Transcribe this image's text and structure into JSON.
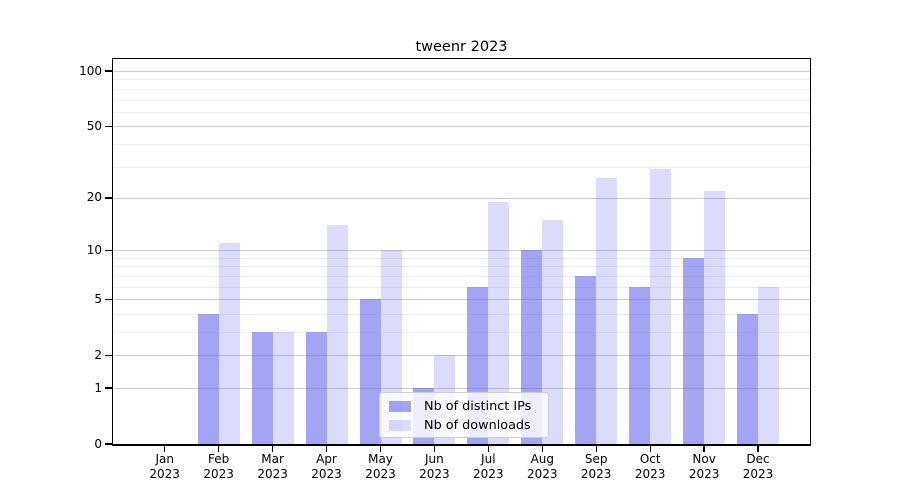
{
  "chart_data": {
    "type": "bar",
    "title": "tweenr 2023",
    "xlabel": "",
    "ylabel": "",
    "scale": "log1p",
    "grid": "on",
    "legend_position": "bottom-center-inside",
    "year": "2023",
    "categories": [
      "Jan",
      "Feb",
      "Mar",
      "Apr",
      "May",
      "Jun",
      "Jul",
      "Aug",
      "Sep",
      "Oct",
      "Nov",
      "Dec"
    ],
    "x_tick_labels": [
      "Jan 2023",
      "Feb 2023",
      "Mar 2023",
      "Apr 2023",
      "May 2023",
      "Jun 2023",
      "Jul 2023",
      "Aug 2023",
      "Sep 2023",
      "Oct 2023",
      "Nov 2023",
      "Dec 2023"
    ],
    "series": [
      {
        "name": "Nb of distinct IPs",
        "color": "rgba(90,90,235,0.55)",
        "values": [
          0,
          4,
          3,
          3,
          5,
          1,
          6,
          10,
          7,
          6,
          9,
          4
        ]
      },
      {
        "name": "Nb of downloads",
        "color": "rgba(90,90,235,0.22)",
        "values": [
          0,
          11,
          3,
          14,
          10,
          2,
          19,
          15,
          26,
          29,
          22,
          6
        ]
      }
    ],
    "y_axis": {
      "ticks": [
        0,
        1,
        2,
        5,
        10,
        20,
        50,
        100
      ],
      "minor_ticks": [
        3,
        4,
        6,
        7,
        8,
        9,
        30,
        40,
        60,
        70,
        80,
        90
      ],
      "ylim": [
        0,
        115
      ]
    },
    "colors": {
      "major_grid": "#cdcdcd",
      "minor_grid": "#ededed",
      "axis": "#000000",
      "background": "#ffffff"
    }
  }
}
